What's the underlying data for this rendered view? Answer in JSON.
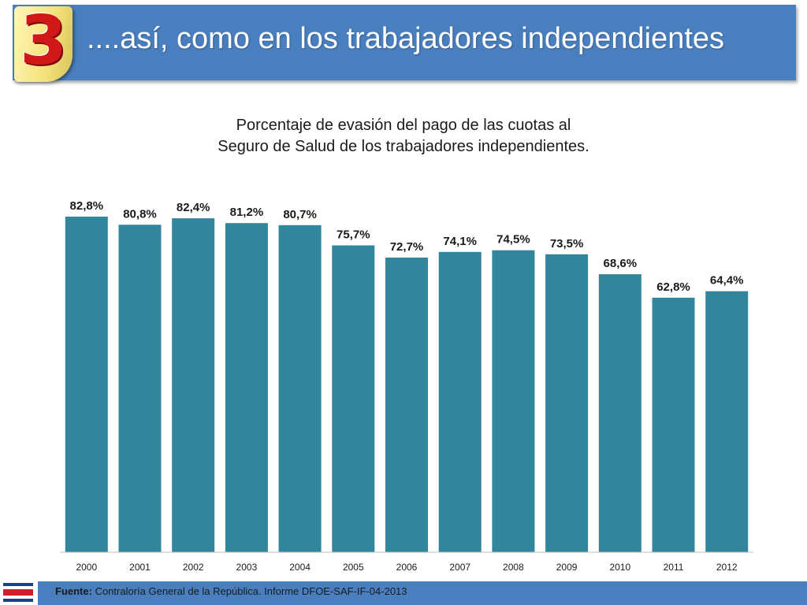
{
  "header": {
    "badge_number": "3",
    "title": "....así, como en los trabajadores independientes"
  },
  "chart_data": {
    "type": "bar",
    "title_lines": [
      "Porcentaje de evasión del pago de las cuotas al",
      "Seguro de Salud de los trabajadores independientes."
    ],
    "categories": [
      "2000",
      "2001",
      "2002",
      "2003",
      "2004",
      "2005",
      "2006",
      "2007",
      "2008",
      "2009",
      "2010",
      "2011",
      "2012"
    ],
    "values": [
      82.8,
      80.8,
      82.4,
      81.2,
      80.7,
      75.7,
      72.7,
      74.1,
      74.5,
      73.5,
      68.6,
      62.8,
      64.4
    ],
    "value_labels": [
      "82,8%",
      "80,8%",
      "82,4%",
      "81,2%",
      "80,7%",
      "75,7%",
      "72,7%",
      "74,1%",
      "74,5%",
      "73,5%",
      "68,6%",
      "62,8%",
      "64,4%"
    ],
    "ylim": [
      0,
      82.8
    ],
    "grid": false,
    "legend": "none",
    "bar_color": "#31869b"
  },
  "footer": {
    "source_label": "Fuente:",
    "source_text": " Contraloría General de la República. Informe DFOE-SAF-IF-04-2013"
  },
  "colors": {
    "banner": "#4a7fbf",
    "badge_text": "#d01818",
    "flag_blue": "#1f3f8c",
    "flag_red": "#d11f2a",
    "flag_white": "#ffffff"
  }
}
